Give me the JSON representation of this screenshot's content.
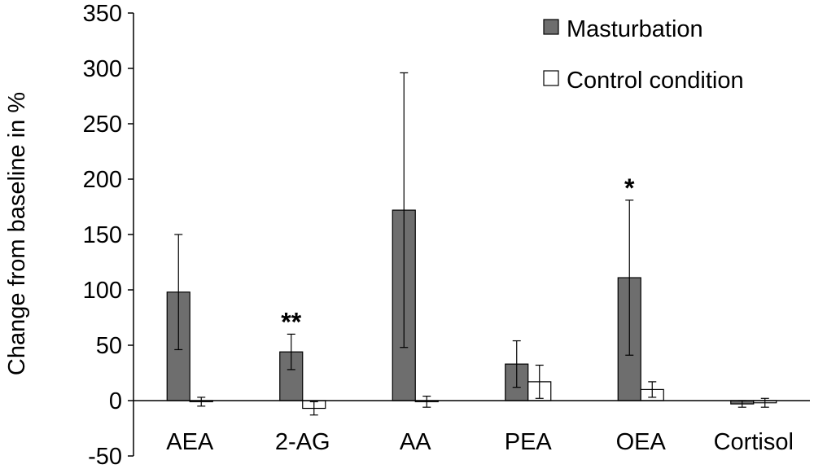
{
  "chart_data": {
    "type": "bar",
    "title": "",
    "xlabel": "",
    "ylabel": "Change from baseline in %",
    "ylim": [
      -50,
      350
    ],
    "yticks": [
      -50,
      0,
      50,
      100,
      150,
      200,
      250,
      300,
      350
    ],
    "grid": false,
    "legend_position": "top-right",
    "categories": [
      "AEA",
      "2-AG",
      "AA",
      "PEA",
      "OEA",
      "Cortisol"
    ],
    "series": [
      {
        "name": "Masturbation",
        "color": "#6e6e6e",
        "values": [
          98,
          44,
          172,
          33,
          111,
          -3
        ],
        "errors": [
          52,
          16,
          124,
          21,
          70,
          3
        ]
      },
      {
        "name": "Control condition",
        "color": "#ffffff",
        "values": [
          -1,
          -7,
          -1,
          17,
          10,
          -2
        ],
        "errors": [
          4,
          6,
          5,
          15,
          7,
          4
        ]
      }
    ],
    "annotations": [
      {
        "category": "2-AG",
        "series": "Masturbation",
        "text": "**"
      },
      {
        "category": "OEA",
        "series": "Masturbation",
        "text": "*"
      }
    ]
  }
}
